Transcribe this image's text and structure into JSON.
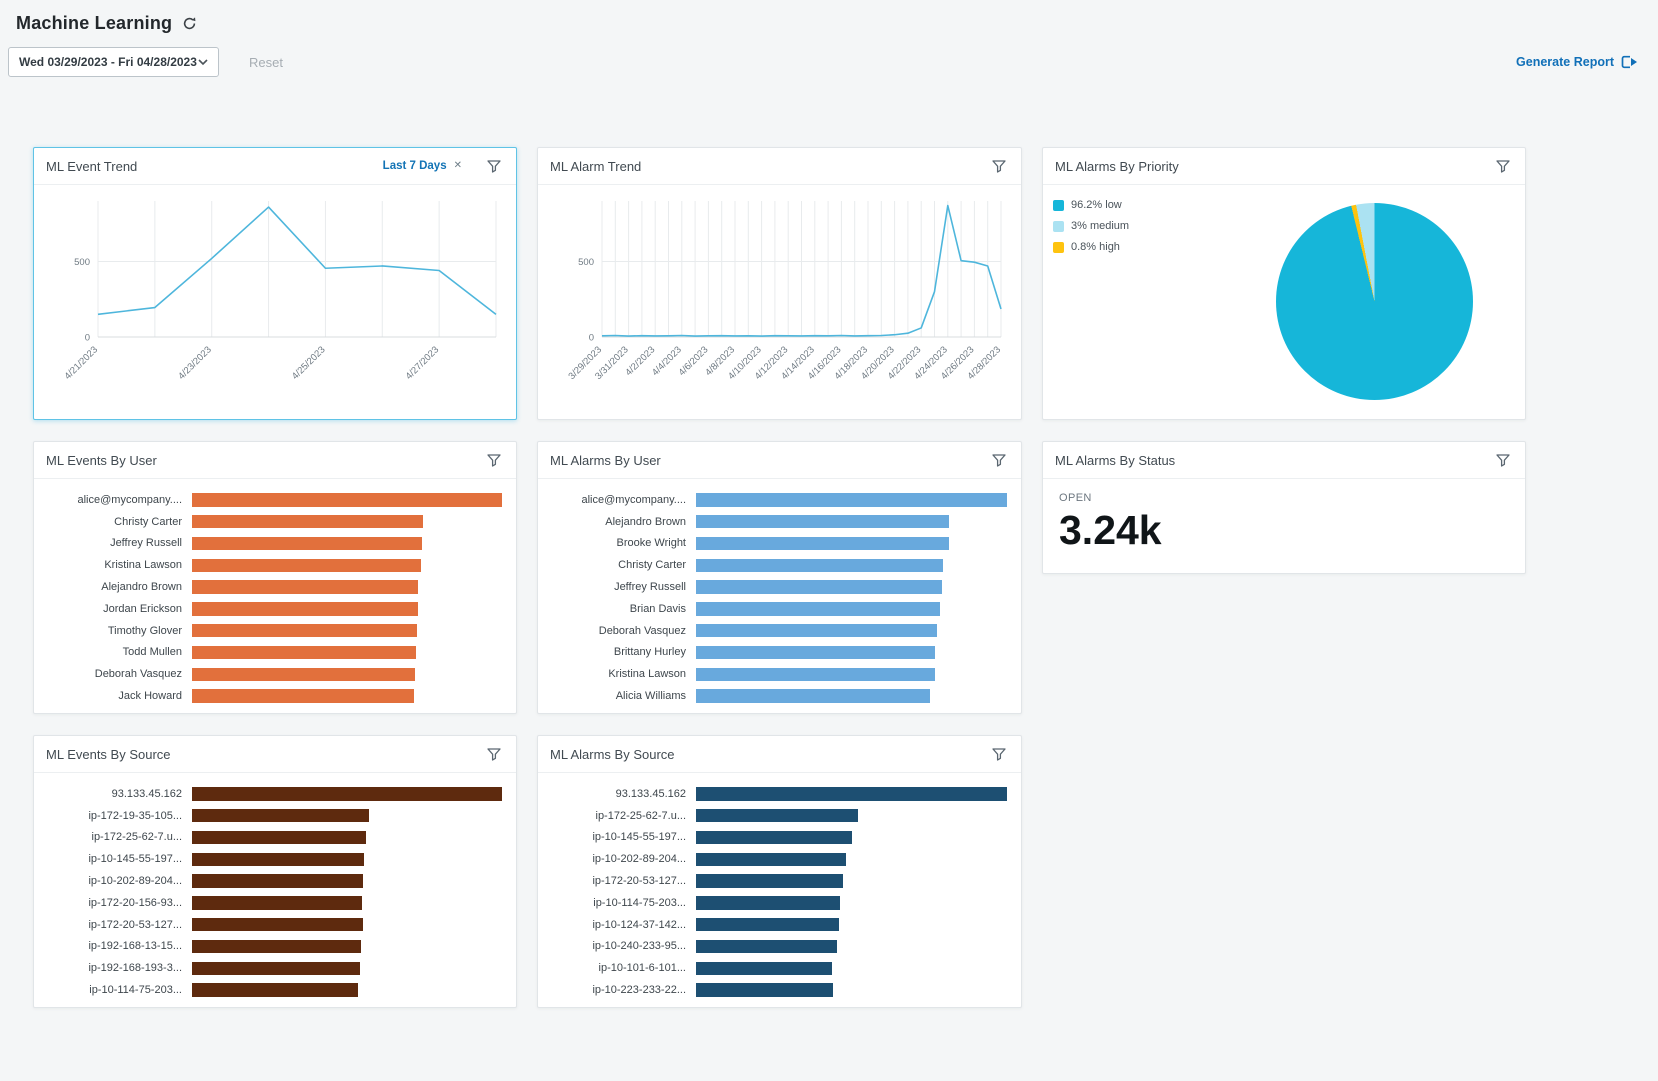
{
  "page": {
    "title": "Machine Learning",
    "date_range_value": "Wed 03/29/2023 - Fri 04/28/2023",
    "reset_label": "Reset",
    "generate_report_label": "Generate Report"
  },
  "cards": {
    "event_trend": {
      "title": "ML Event Trend",
      "filter_tag": "Last 7 Days",
      "filter_tag_close": "✕"
    },
    "alarm_trend": {
      "title": "ML Alarm Trend"
    },
    "alarms_by_priority": {
      "title": "ML Alarms By Priority"
    },
    "events_by_user": {
      "title": "ML Events By User"
    },
    "alarms_by_user": {
      "title": "ML Alarms By User"
    },
    "alarms_by_status": {
      "title": "ML Alarms By Status",
      "status_label": "OPEN",
      "status_value": "3.24k"
    },
    "events_by_source": {
      "title": "ML Events By Source"
    },
    "alarms_by_source": {
      "title": "ML Alarms By Source"
    }
  },
  "colors": {
    "trend_line": "#4eb6dc",
    "events_user_bar": "#e2703c",
    "alarms_user_bar": "#68a9dd",
    "events_source_bar": "#5e2a0e",
    "alarms_source_bar": "#1d4f72",
    "pie_low": "#16b6d9",
    "pie_medium": "#abe2f2",
    "pie_high": "#fec30f",
    "accent_blue": "#1170b8"
  },
  "chart_data": [
    {
      "id": "event-trend",
      "type": "line",
      "title": "ML Event Trend",
      "x": [
        "4/21/2023",
        "4/22/2023",
        "4/23/2023",
        "4/24/2023",
        "4/25/2023",
        "4/26/2023",
        "4/27/2023",
        "4/28/2023"
      ],
      "tick_labels": [
        "4/21/2023",
        "",
        "4/23/2023",
        "",
        "4/25/2023",
        "",
        "4/27/2023",
        ""
      ],
      "values": [
        150,
        195,
        520,
        860,
        455,
        470,
        440,
        150
      ],
      "ylim": [
        0,
        900
      ],
      "yticks": [
        0,
        500
      ],
      "color": "#4eb6dc",
      "grid": true,
      "legend": "none"
    },
    {
      "id": "alarm-trend",
      "type": "line",
      "title": "ML Alarm Trend",
      "x": [
        "3/29/2023",
        "3/30/2023",
        "3/31/2023",
        "4/1/2023",
        "4/2/2023",
        "4/3/2023",
        "4/4/2023",
        "4/5/2023",
        "4/6/2023",
        "4/7/2023",
        "4/8/2023",
        "4/9/2023",
        "4/10/2023",
        "4/11/2023",
        "4/12/2023",
        "4/13/2023",
        "4/14/2023",
        "4/15/2023",
        "4/16/2023",
        "4/17/2023",
        "4/18/2023",
        "4/19/2023",
        "4/20/2023",
        "4/21/2023",
        "4/22/2023",
        "4/23/2023",
        "4/24/2023",
        "4/25/2023",
        "4/26/2023",
        "4/27/2023",
        "4/28/2023"
      ],
      "tick_labels": [
        "3/29/2023",
        "",
        "3/31/2023",
        "",
        "4/2/2023",
        "",
        "4/4/2023",
        "",
        "4/6/2023",
        "",
        "4/8/2023",
        "",
        "4/10/2023",
        "",
        "4/12/2023",
        "",
        "4/14/2023",
        "",
        "4/16/2023",
        "",
        "4/18/2023",
        "",
        "4/20/2023",
        "",
        "4/22/2023",
        "",
        "4/24/2023",
        "",
        "4/26/2023",
        "",
        "4/28/2023"
      ],
      "values": [
        8,
        10,
        6,
        9,
        7,
        8,
        10,
        6,
        8,
        9,
        7,
        8,
        6,
        9,
        8,
        7,
        9,
        8,
        10,
        7,
        9,
        10,
        15,
        25,
        60,
        300,
        870,
        505,
        495,
        470,
        185
      ],
      "ylim": [
        0,
        900
      ],
      "yticks": [
        0,
        500
      ],
      "color": "#4eb6dc",
      "grid": true,
      "legend": "none"
    },
    {
      "id": "alarms-priority",
      "type": "pie",
      "title": "ML Alarms By Priority",
      "legend_position": "top-left",
      "slices": [
        {
          "label": "96.2% low",
          "value": 96.2,
          "color": "#16b6d9"
        },
        {
          "label": "3% medium",
          "value": 3,
          "color": "#abe2f2"
        },
        {
          "label": "0.8% high",
          "value": 0.8,
          "color": "#fec30f"
        }
      ]
    },
    {
      "id": "events-by-user",
      "type": "bar",
      "title": "ML Events By User",
      "orientation": "horizontal",
      "categories": [
        "alice@mycompany....",
        "Christy Carter",
        "Jeffrey Russell",
        "Kristina Lawson",
        "Alejandro Brown",
        "Jordan Erickson",
        "Timothy Glover",
        "Todd Mullen",
        "Deborah Vasquez",
        "Jack Howard"
      ],
      "values": [
        1000,
        745,
        742,
        740,
        730,
        728,
        726,
        722,
        718,
        715
      ],
      "color": "#e2703c"
    },
    {
      "id": "alarms-by-user",
      "type": "bar",
      "title": "ML Alarms By User",
      "orientation": "horizontal",
      "categories": [
        "alice@mycompany....",
        "Alejandro Brown",
        "Brooke Wright",
        "Christy Carter",
        "Jeffrey Russell",
        "Brian Davis",
        "Deborah Vasquez",
        "Brittany Hurley",
        "Kristina Lawson",
        "Alicia Williams"
      ],
      "values": [
        1000,
        815,
        812,
        795,
        792,
        785,
        775,
        770,
        768,
        752
      ],
      "color": "#68a9dd"
    },
    {
      "id": "events-by-source",
      "type": "bar",
      "title": "ML Events By Source",
      "orientation": "horizontal",
      "categories": [
        "93.133.45.162",
        "ip-172-19-35-105...",
        "ip-172-25-62-7.u...",
        "ip-10-145-55-197...",
        "ip-10-202-89-204...",
        "ip-172-20-156-93...",
        "ip-172-20-53-127...",
        "ip-192-168-13-15...",
        "ip-192-168-193-3...",
        "ip-10-114-75-203..."
      ],
      "values": [
        1000,
        570,
        562,
        556,
        553,
        549,
        551,
        546,
        543,
        536
      ],
      "color": "#5e2a0e"
    },
    {
      "id": "alarms-by-source",
      "type": "bar",
      "title": "ML Alarms By Source",
      "orientation": "horizontal",
      "categories": [
        "93.133.45.162",
        "ip-172-25-62-7.u...",
        "ip-10-145-55-197...",
        "ip-10-202-89-204...",
        "ip-172-20-53-127...",
        "ip-10-114-75-203...",
        "ip-10-124-37-142...",
        "ip-10-240-233-95...",
        "ip-10-101-6-101...",
        "ip-10-223-233-22..."
      ],
      "values": [
        1000,
        520,
        500,
        482,
        472,
        463,
        460,
        452,
        436,
        440
      ],
      "color": "#1d4f72"
    }
  ]
}
